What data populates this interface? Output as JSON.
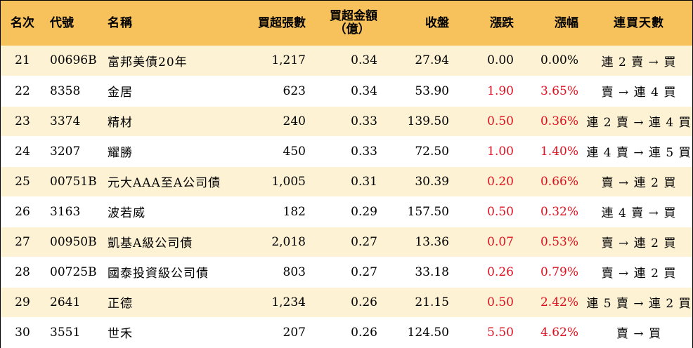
{
  "table": {
    "headers": {
      "rank": "名次",
      "code": "代號",
      "name": "名稱",
      "net_buy_lots": "買超張數",
      "net_buy_amount_line1": "買超金額",
      "net_buy_amount_line2": "（億）",
      "close": "收盤",
      "change": "漲跌",
      "change_pct": "漲幅",
      "consecutive_days": "連買天數"
    },
    "rows": [
      {
        "rank": "21",
        "code": "00696B",
        "name": "富邦美債20年",
        "lots": "1,217",
        "amount": "0.34",
        "close": "27.94",
        "change": "0.00",
        "pct": "0.00%",
        "days": "連 2 賣 → 買",
        "trend": "flat"
      },
      {
        "rank": "22",
        "code": "8358",
        "name": "金居",
        "lots": "623",
        "amount": "0.34",
        "close": "53.90",
        "change": "1.90",
        "pct": "3.65%",
        "days": "賣 → 連 4 買",
        "trend": "up"
      },
      {
        "rank": "23",
        "code": "3374",
        "name": "精材",
        "lots": "240",
        "amount": "0.33",
        "close": "139.50",
        "change": "0.50",
        "pct": "0.36%",
        "days": "連 2 賣 → 連 4 買",
        "trend": "up"
      },
      {
        "rank": "24",
        "code": "3207",
        "name": "耀勝",
        "lots": "450",
        "amount": "0.33",
        "close": "72.50",
        "change": "1.00",
        "pct": "1.40%",
        "days": "連 4 賣 → 連 5 買",
        "trend": "up"
      },
      {
        "rank": "25",
        "code": "00751B",
        "name": "元大AAA至A公司債",
        "lots": "1,005",
        "amount": "0.31",
        "close": "30.39",
        "change": "0.20",
        "pct": "0.66%",
        "days": "賣 → 連 2 買",
        "trend": "up"
      },
      {
        "rank": "26",
        "code": "3163",
        "name": "波若威",
        "lots": "182",
        "amount": "0.29",
        "close": "157.50",
        "change": "0.50",
        "pct": "0.32%",
        "days": "連 4 賣 → 買",
        "trend": "up"
      },
      {
        "rank": "27",
        "code": "00950B",
        "name": "凱基A級公司債",
        "lots": "2,018",
        "amount": "0.27",
        "close": "13.36",
        "change": "0.07",
        "pct": "0.53%",
        "days": "賣 → 連 2 買",
        "trend": "up"
      },
      {
        "rank": "28",
        "code": "00725B",
        "name": "國泰投資級公司債",
        "lots": "803",
        "amount": "0.27",
        "close": "33.18",
        "change": "0.26",
        "pct": "0.79%",
        "days": "賣 → 連 2 買",
        "trend": "up"
      },
      {
        "rank": "29",
        "code": "2641",
        "name": "正德",
        "lots": "1,234",
        "amount": "0.26",
        "close": "21.15",
        "change": "0.50",
        "pct": "2.42%",
        "days": "連 5 賣 → 連 2 買",
        "trend": "up"
      },
      {
        "rank": "30",
        "code": "3551",
        "name": "世禾",
        "lots": "207",
        "amount": "0.26",
        "close": "124.50",
        "change": "5.50",
        "pct": "4.62%",
        "days": "賣 → 買",
        "trend": "up"
      }
    ]
  },
  "colors": {
    "header_bg": "#f7c15c",
    "odd_row_bg": "#fdf2d4",
    "up": "#e0101f"
  }
}
